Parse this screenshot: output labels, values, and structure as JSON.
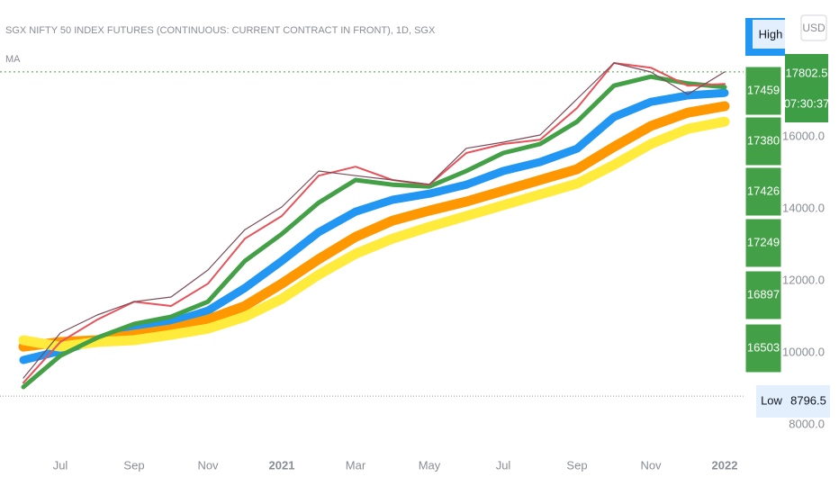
{
  "chart_data": {
    "type": "line",
    "title": "SGX NIFTY 50 INDEX FUTURES (CONTINUOUS: CURRENT CONTRACT IN FRONT), 1D, SGX",
    "indicator": "MA",
    "currency": "USD",
    "categories": [
      null,
      "Jul",
      null,
      "Sep",
      null,
      "Nov",
      null,
      "2021",
      null,
      "Mar",
      null,
      "May",
      null,
      "Jul",
      null,
      "Sep",
      null,
      "Nov",
      null,
      "2022"
    ],
    "series": [
      {
        "color": "#7b4b57",
        "width": 1.2,
        "values": [
          9300,
          10550,
          11050,
          11420,
          11550,
          12300,
          13420,
          14050,
          15050,
          14920,
          14800,
          14680,
          15680,
          15850,
          16050,
          17050,
          18050,
          17800,
          17180,
          17802.5
        ]
      },
      {
        "color": "#e8525a",
        "width": 2,
        "values": [
          9170,
          10300,
          10920,
          11420,
          11300,
          11920,
          13170,
          13800,
          14920,
          15170,
          14800,
          14670,
          15550,
          15800,
          15920,
          16800,
          18050,
          17920,
          17420,
          17470
        ]
      },
      {
        "color": "#43a047",
        "width": 5,
        "values": [
          9050,
          9920,
          10420,
          10800,
          11000,
          11420,
          12550,
          13300,
          14170,
          14800,
          14670,
          14620,
          15050,
          15550,
          15800,
          16420,
          17420,
          17670,
          17480,
          17380
        ]
      },
      {
        "color": "#ffeb3b",
        "width": 11,
        "values": [
          10350,
          10170,
          10300,
          10350,
          10500,
          10670,
          11000,
          11500,
          12170,
          12750,
          13170,
          13500,
          13800,
          14100,
          14400,
          14700,
          15220,
          15800,
          16220,
          16420
        ]
      },
      {
        "color": "#ff9800",
        "width": 11,
        "values": [
          10170,
          10300,
          10350,
          10500,
          10650,
          10920,
          11300,
          11920,
          12600,
          13220,
          13670,
          13950,
          14200,
          14500,
          14800,
          15100,
          15720,
          16300,
          16670,
          16850
        ]
      },
      {
        "color": "#2196f3",
        "width": 9,
        "values": [
          9800,
          10050,
          10350,
          10670,
          10850,
          11170,
          11800,
          12550,
          13350,
          13920,
          14250,
          14420,
          14670,
          15050,
          15300,
          15670,
          16550,
          16970,
          17150,
          17220
        ]
      }
    ],
    "ylim": [
      7300,
      19800
    ],
    "yticks": [
      {
        "value": 8000,
        "label": "8000.0"
      },
      {
        "value": 10000,
        "label": "10000.0"
      },
      {
        "value": 12000,
        "label": "12000.0"
      },
      {
        "value": 14000,
        "label": "14000.0"
      },
      {
        "value": 16000,
        "label": "16000.0"
      }
    ],
    "grid": false,
    "ma_labels": [
      17459,
      17380,
      17426,
      17249,
      16897,
      16503
    ],
    "ma_label_color": "#43a047",
    "last_price": 17802.5,
    "last_price_color": "#3d9e46",
    "countdown": "07:30:37",
    "high_label": "High",
    "high_color": "#2196f3",
    "low_label": "Low",
    "low": 8796.5
  }
}
